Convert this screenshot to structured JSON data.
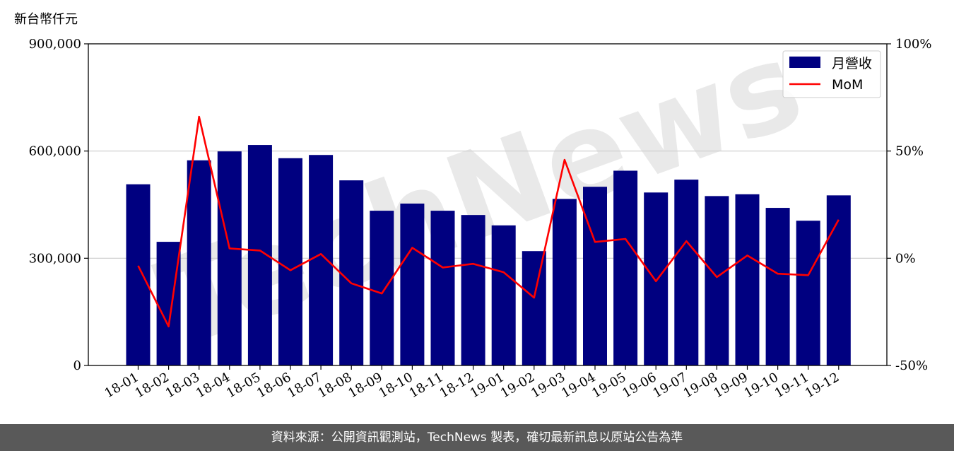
{
  "footer": {
    "source_note": "資料來源：公開資訊觀測站，TechNews 製表，確切最新訊息以原站公告為準"
  },
  "watermark": {
    "text": "TechNews"
  },
  "colors": {
    "bar": "#000080",
    "line": "#ff0000",
    "grid": "#cccccc"
  },
  "chart_data": {
    "type": "bar",
    "categories": [
      "18-01",
      "18-02",
      "18-03",
      "18-04",
      "18-05",
      "18-06",
      "18-07",
      "18-08",
      "18-09",
      "18-10",
      "18-11",
      "18-12",
      "19-01",
      "19-02",
      "19-03",
      "19-04",
      "19-05",
      "19-06",
      "19-07",
      "19-08",
      "19-09",
      "19-10",
      "19-11",
      "19-12"
    ],
    "left_axis": {
      "unit_label": "新台幣仟元",
      "ylim": [
        0,
        900000
      ],
      "ticks": [
        0,
        300000,
        600000,
        900000
      ],
      "tick_labels": [
        "0",
        "300,000",
        "600,000",
        "900,000"
      ]
    },
    "right_axis": {
      "ylim": [
        -50,
        100
      ],
      "ticks": [
        -50,
        0,
        50,
        100
      ],
      "tick_labels": [
        "-50%",
        "0%",
        "50%",
        "100%"
      ]
    },
    "grid": "horizontal",
    "legend_position": "top-right",
    "series": [
      {
        "name": "月營收",
        "type": "bar",
        "axis": "left",
        "values": [
          507000,
          346000,
          574000,
          599000,
          617000,
          580000,
          589000,
          518000,
          433000,
          453000,
          433000,
          421000,
          392000,
          320000,
          466000,
          500000,
          545000,
          484000,
          520000,
          474000,
          479000,
          441000,
          405000,
          476000
        ]
      },
      {
        "name": "MoM",
        "type": "line",
        "axis": "right",
        "values": [
          -3.5,
          -31.8,
          66.0,
          4.6,
          3.6,
          -5.6,
          2.0,
          -11.7,
          -16.4,
          4.9,
          -4.3,
          -2.6,
          -6.5,
          -18.4,
          45.9,
          7.6,
          9.0,
          -10.7,
          8.0,
          -8.8,
          1.3,
          -7.2,
          -7.9,
          18.0
        ]
      }
    ]
  }
}
